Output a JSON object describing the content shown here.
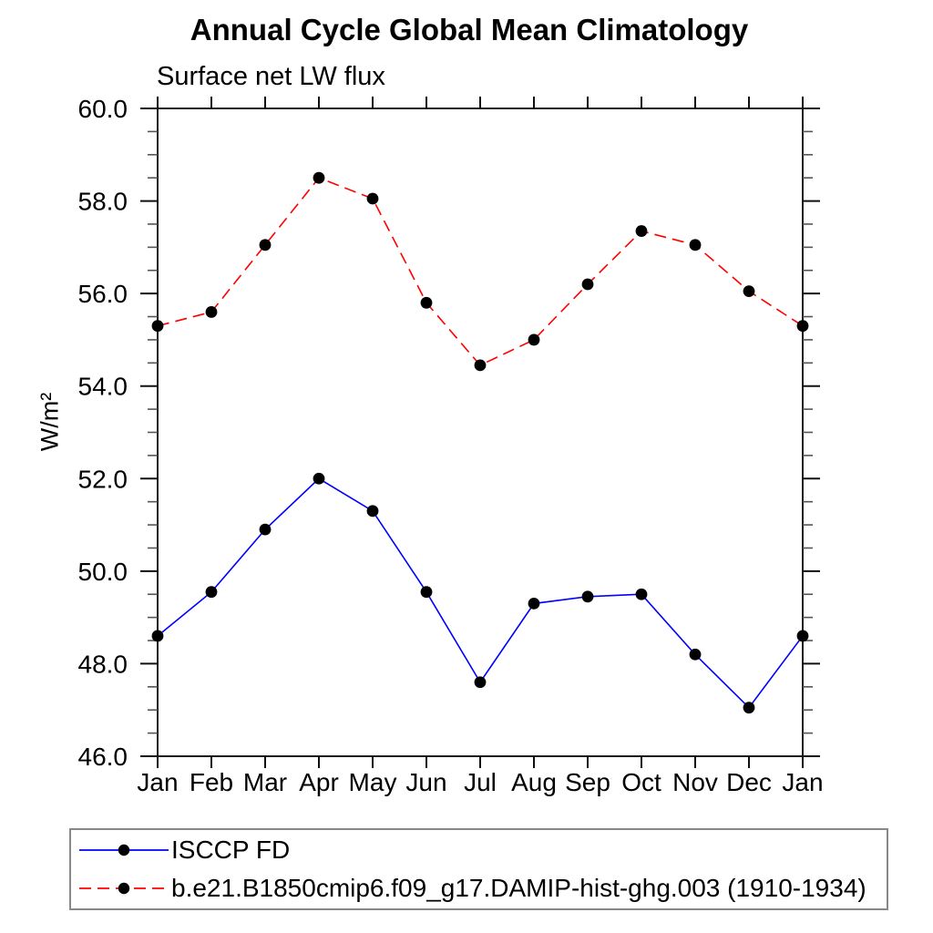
{
  "chart": {
    "title": "Annual Cycle Global Mean Climatology",
    "subtitle": "Surface net LW flux",
    "ylabel": "W/m²"
  },
  "chart_data": {
    "type": "line",
    "categories": [
      "Jan",
      "Feb",
      "Mar",
      "Apr",
      "May",
      "Jun",
      "Jul",
      "Aug",
      "Sep",
      "Oct",
      "Nov",
      "Dec",
      "Jan"
    ],
    "series": [
      {
        "name": "ISCCP FD",
        "line_color": "#0000ff",
        "line_style": "solid",
        "marker": "filled-circle",
        "marker_color": "#000000",
        "values": [
          48.6,
          49.55,
          50.9,
          52.0,
          51.3,
          49.55,
          47.6,
          49.3,
          49.45,
          49.5,
          48.2,
          47.05,
          48.6
        ]
      },
      {
        "name": "b.e21.B1850cmip6.f09_g17.DAMIP-hist-ghg.003 (1910-1934)",
        "line_color": "#ff0000",
        "line_style": "dashed",
        "marker": "filled-circle",
        "marker_color": "#000000",
        "values": [
          55.3,
          55.6,
          57.05,
          58.5,
          58.05,
          55.8,
          54.45,
          55.0,
          56.2,
          57.35,
          57.05,
          56.05,
          55.3
        ]
      }
    ],
    "xlabel": "",
    "ylabel": "W/m²",
    "ylim": [
      46.0,
      60.0
    ],
    "ytick_major": [
      46.0,
      48.0,
      50.0,
      52.0,
      54.0,
      56.0,
      58.0,
      60.0
    ],
    "ytick_labels": [
      "46.0",
      "48.0",
      "50.0",
      "52.0",
      "54.0",
      "56.0",
      "58.0",
      "60.0"
    ],
    "ytick_minor_step": 0.5,
    "grid": false,
    "frame": "box-with-outward-ticks",
    "legend_position": "bottom-left"
  }
}
